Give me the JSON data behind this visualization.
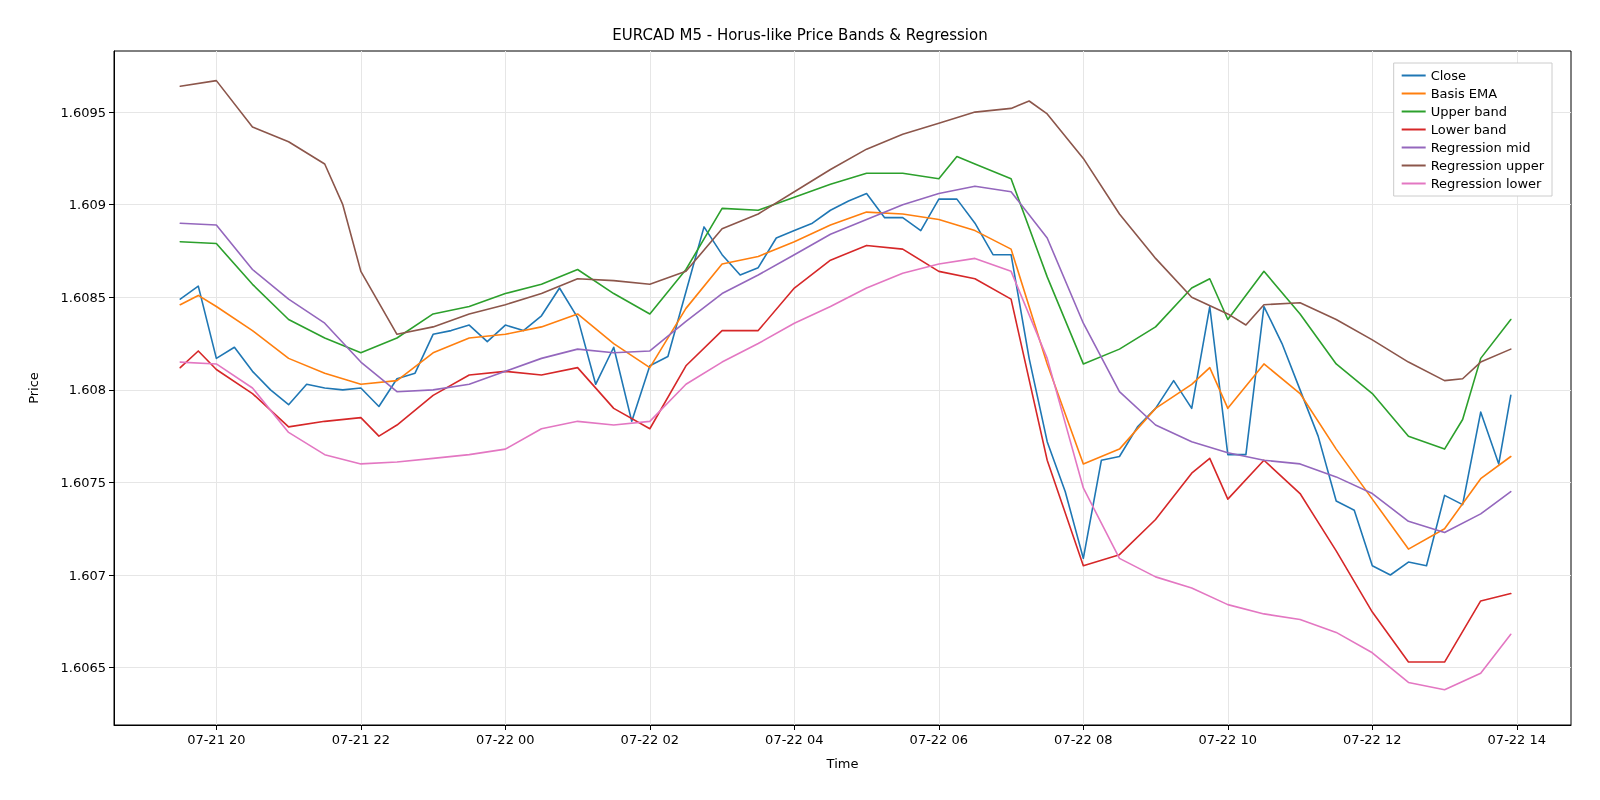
{
  "chart_data": {
    "type": "line",
    "title": "EURCAD M5 - Horus-like Price Bands & Regression",
    "xlabel": "Time",
    "ylabel": "Price",
    "legend": "top right",
    "grid": true,
    "marker": "none",
    "line_style": "solid",
    "xlim": [
      "--07-21T18:35",
      "--07-22T14:45"
    ],
    "xticks": [
      {
        "value": "--07-21T20:00",
        "label": "07-21 20"
      },
      {
        "value": "--07-21T22:00",
        "label": "07-21 22"
      },
      {
        "value": "--07-22T00:00",
        "label": "07-22 00"
      },
      {
        "value": "--07-22T02:00",
        "label": "07-22 02"
      },
      {
        "value": "--07-22T04:00",
        "label": "07-22 04"
      },
      {
        "value": "--07-22T06:00",
        "label": "07-22 06"
      },
      {
        "value": "--07-22T08:00",
        "label": "07-22 08"
      },
      {
        "value": "--07-22T10:00",
        "label": "07-22 10"
      },
      {
        "value": "--07-22T12:00",
        "label": "07-22 12"
      },
      {
        "value": "--07-22T14:00",
        "label": "07-22 14"
      }
    ],
    "ylim": [
      1.60619,
      1.60983
    ],
    "yticks": [
      1.6065,
      1.607,
      1.6075,
      1.608,
      1.6085,
      1.609,
      1.6095
    ],
    "series": [
      {
        "name": "Close",
        "color": "#1f77b4",
        "x": [
          "--07-21T19:30",
          "--07-21T19:45",
          "--07-21T20:00",
          "--07-21T20:15",
          "--07-21T20:30",
          "--07-21T20:45",
          "--07-21T21:00",
          "--07-21T21:15",
          "--07-21T21:30",
          "--07-21T21:45",
          "--07-21T22:00",
          "--07-21T22:15",
          "--07-21T22:30",
          "--07-21T22:45",
          "--07-21T23:00",
          "--07-21T23:15",
          "--07-21T23:30",
          "--07-21T23:45",
          "--07-22T00:00",
          "--07-22T00:15",
          "--07-22T00:30",
          "--07-22T00:45",
          "--07-22T01:00",
          "--07-22T01:15",
          "--07-22T01:30",
          "--07-22T01:45",
          "--07-22T02:00",
          "--07-22T02:15",
          "--07-22T02:30",
          "--07-22T02:45",
          "--07-22T03:00",
          "--07-22T03:15",
          "--07-22T03:30",
          "--07-22T03:45",
          "--07-22T04:00",
          "--07-22T04:15",
          "--07-22T04:30",
          "--07-22T04:45",
          "--07-22T05:00",
          "--07-22T05:15",
          "--07-22T05:30",
          "--07-22T05:45",
          "--07-22T06:00",
          "--07-22T06:15",
          "--07-22T06:30",
          "--07-22T06:45",
          "--07-22T07:00",
          "--07-22T07:15",
          "--07-22T07:30",
          "--07-22T07:45",
          "--07-22T08:00",
          "--07-22T08:15",
          "--07-22T08:30",
          "--07-22T08:45",
          "--07-22T09:00",
          "--07-22T09:15",
          "--07-22T09:30",
          "--07-22T09:45",
          "--07-22T10:00",
          "--07-22T10:15",
          "--07-22T10:30",
          "--07-22T10:45",
          "--07-22T11:00",
          "--07-22T11:15",
          "--07-22T11:30",
          "--07-22T11:45",
          "--07-22T12:00",
          "--07-22T12:15",
          "--07-22T12:30",
          "--07-22T12:45",
          "--07-22T13:00",
          "--07-22T13:15",
          "--07-22T13:30",
          "--07-22T13:45",
          "--07-22T13:55"
        ],
        "values": [
          1.60849,
          1.60856,
          1.60817,
          1.60823,
          1.6081,
          1.608,
          1.60792,
          1.60803,
          1.60801,
          1.608,
          1.60801,
          1.60791,
          1.60806,
          1.60809,
          1.6083,
          1.60832,
          1.60835,
          1.60826,
          1.60835,
          1.60832,
          1.6084,
          1.60855,
          1.60839,
          1.60803,
          1.60823,
          1.60783,
          1.60813,
          1.60818,
          1.60853,
          1.60888,
          1.60873,
          1.60862,
          1.60866,
          1.60882,
          1.60886,
          1.6089,
          1.60897,
          1.60902,
          1.60906,
          1.60893,
          1.60893,
          1.60886,
          1.60903,
          1.60903,
          1.6089,
          1.60873,
          1.60873,
          1.60817,
          1.60772,
          1.60745,
          1.60709,
          1.60762,
          1.60764,
          1.6078,
          1.6079,
          1.60805,
          1.6079,
          1.60845,
          1.60765,
          1.60765,
          1.60845,
          1.60825,
          1.608,
          1.60775,
          1.6074,
          1.60735,
          1.60705,
          1.607,
          1.60707,
          1.60705,
          1.60743,
          1.60738,
          1.60788,
          1.6076,
          1.60797
        ]
      },
      {
        "name": "Basis EMA",
        "color": "#ff7f0e",
        "x": [
          "--07-21T19:30",
          "--07-21T19:45",
          "--07-21T20:00",
          "--07-21T20:30",
          "--07-21T21:00",
          "--07-21T21:30",
          "--07-21T22:00",
          "--07-21T22:30",
          "--07-21T23:00",
          "--07-21T23:30",
          "--07-22T00:00",
          "--07-22T00:30",
          "--07-22T01:00",
          "--07-22T01:30",
          "--07-22T02:00",
          "--07-22T02:30",
          "--07-22T03:00",
          "--07-22T03:30",
          "--07-22T04:00",
          "--07-22T04:30",
          "--07-22T05:00",
          "--07-22T05:30",
          "--07-22T06:00",
          "--07-22T06:30",
          "--07-22T07:00",
          "--07-22T07:30",
          "--07-22T08:00",
          "--07-22T08:30",
          "--07-22T09:00",
          "--07-22T09:30",
          "--07-22T09:45",
          "--07-22T10:00",
          "--07-22T10:30",
          "--07-22T11:00",
          "--07-22T11:30",
          "--07-22T12:00",
          "--07-22T12:30",
          "--07-22T13:00",
          "--07-22T13:30",
          "--07-22T13:55"
        ],
        "values": [
          1.60846,
          1.60851,
          1.60845,
          1.60832,
          1.60817,
          1.60809,
          1.60803,
          1.60805,
          1.6082,
          1.60828,
          1.6083,
          1.60834,
          1.60841,
          1.60825,
          1.60812,
          1.60844,
          1.60868,
          1.60872,
          1.6088,
          1.60889,
          1.60896,
          1.60895,
          1.60892,
          1.60886,
          1.60876,
          1.60814,
          1.6076,
          1.60768,
          1.6079,
          1.60803,
          1.60812,
          1.6079,
          1.60814,
          1.60798,
          1.60768,
          1.60741,
          1.60714,
          1.60725,
          1.60752,
          1.60764
        ]
      },
      {
        "name": "Upper band",
        "color": "#2ca02c",
        "x": [
          "--07-21T19:30",
          "--07-21T20:00",
          "--07-21T20:30",
          "--07-21T21:00",
          "--07-21T21:30",
          "--07-21T22:00",
          "--07-21T22:30",
          "--07-21T23:00",
          "--07-21T23:30",
          "--07-22T00:00",
          "--07-22T00:30",
          "--07-22T01:00",
          "--07-22T01:30",
          "--07-22T02:00",
          "--07-22T02:30",
          "--07-22T03:00",
          "--07-22T03:30",
          "--07-22T04:00",
          "--07-22T04:30",
          "--07-22T05:00",
          "--07-22T05:30",
          "--07-22T06:00",
          "--07-22T06:15",
          "--07-22T06:30",
          "--07-22T07:00",
          "--07-22T07:30",
          "--07-22T08:00",
          "--07-22T08:30",
          "--07-22T09:00",
          "--07-22T09:30",
          "--07-22T09:45",
          "--07-22T10:00",
          "--07-22T10:30",
          "--07-22T11:00",
          "--07-22T11:30",
          "--07-22T12:00",
          "--07-22T12:30",
          "--07-22T13:00",
          "--07-22T13:15",
          "--07-22T13:30",
          "--07-22T13:55"
        ],
        "values": [
          1.6088,
          1.60879,
          1.60857,
          1.60838,
          1.60828,
          1.6082,
          1.60828,
          1.60841,
          1.60845,
          1.60852,
          1.60857,
          1.60865,
          1.60852,
          1.60841,
          1.60865,
          1.60898,
          1.60897,
          1.60904,
          1.60911,
          1.60917,
          1.60917,
          1.60914,
          1.60926,
          1.60922,
          1.60914,
          1.60861,
          1.60814,
          1.60822,
          1.60834,
          1.60855,
          1.6086,
          1.60838,
          1.60864,
          1.60841,
          1.60814,
          1.60798,
          1.60775,
          1.60768,
          1.60784,
          1.60817,
          1.60838
        ]
      },
      {
        "name": "Lower band",
        "color": "#d62728",
        "x": [
          "--07-21T19:30",
          "--07-21T19:45",
          "--07-21T20:00",
          "--07-21T20:30",
          "--07-21T21:00",
          "--07-21T21:30",
          "--07-21T22:00",
          "--07-21T22:15",
          "--07-21T22:30",
          "--07-21T23:00",
          "--07-21T23:30",
          "--07-22T00:00",
          "--07-22T00:30",
          "--07-22T01:00",
          "--07-22T01:30",
          "--07-22T02:00",
          "--07-22T02:30",
          "--07-22T03:00",
          "--07-22T03:30",
          "--07-22T04:00",
          "--07-22T04:30",
          "--07-22T05:00",
          "--07-22T05:30",
          "--07-22T06:00",
          "--07-22T06:30",
          "--07-22T07:00",
          "--07-22T07:30",
          "--07-22T08:00",
          "--07-22T08:30",
          "--07-22T09:00",
          "--07-22T09:30",
          "--07-22T09:45",
          "--07-22T10:00",
          "--07-22T10:30",
          "--07-22T11:00",
          "--07-22T11:30",
          "--07-22T12:00",
          "--07-22T12:30",
          "--07-22T13:00",
          "--07-22T13:30",
          "--07-22T13:55"
        ],
        "values": [
          1.60812,
          1.60821,
          1.60811,
          1.60798,
          1.6078,
          1.60783,
          1.60785,
          1.60775,
          1.60781,
          1.60797,
          1.60808,
          1.6081,
          1.60808,
          1.60812,
          1.6079,
          1.60779,
          1.60813,
          1.60832,
          1.60832,
          1.60855,
          1.6087,
          1.60878,
          1.60876,
          1.60864,
          1.6086,
          1.60849,
          1.60762,
          1.60705,
          1.60711,
          1.6073,
          1.60755,
          1.60763,
          1.60741,
          1.60762,
          1.60744,
          1.60713,
          1.6068,
          1.60653,
          1.60653,
          1.60686,
          1.6069
        ]
      },
      {
        "name": "Regression mid",
        "color": "#9467bd",
        "x": [
          "--07-21T19:30",
          "--07-21T20:00",
          "--07-21T20:30",
          "--07-21T21:00",
          "--07-21T21:30",
          "--07-21T22:00",
          "--07-21T22:30",
          "--07-21T23:00",
          "--07-21T23:30",
          "--07-22T00:00",
          "--07-22T00:30",
          "--07-22T01:00",
          "--07-22T01:30",
          "--07-22T02:00",
          "--07-22T02:30",
          "--07-22T03:00",
          "--07-22T03:30",
          "--07-22T04:00",
          "--07-22T04:30",
          "--07-22T05:00",
          "--07-22T05:30",
          "--07-22T06:00",
          "--07-22T06:30",
          "--07-22T07:00",
          "--07-22T07:30",
          "--07-22T08:00",
          "--07-22T08:30",
          "--07-22T09:00",
          "--07-22T09:30",
          "--07-22T10:00",
          "--07-22T10:30",
          "--07-22T11:00",
          "--07-22T11:30",
          "--07-22T12:00",
          "--07-22T12:30",
          "--07-22T13:00",
          "--07-22T13:30",
          "--07-22T13:55"
        ],
        "values": [
          1.6089,
          1.60889,
          1.60865,
          1.60849,
          1.60836,
          1.60815,
          1.60799,
          1.608,
          1.60803,
          1.6081,
          1.60817,
          1.60822,
          1.6082,
          1.60821,
          1.60837,
          1.60852,
          1.60862,
          1.60873,
          1.60884,
          1.60892,
          1.609,
          1.60906,
          1.6091,
          1.60907,
          1.60882,
          1.60836,
          1.60799,
          1.60781,
          1.60772,
          1.60766,
          1.60762,
          1.6076,
          1.60753,
          1.60744,
          1.60729,
          1.60723,
          1.60733,
          1.60745
        ]
      },
      {
        "name": "Regression upper",
        "color": "#8c564b",
        "x": [
          "--07-21T19:30",
          "--07-21T20:00",
          "--07-21T20:30",
          "--07-21T21:00",
          "--07-21T21:30",
          "--07-21T21:45",
          "--07-21T22:00",
          "--07-21T22:30",
          "--07-21T23:00",
          "--07-21T23:30",
          "--07-22T00:00",
          "--07-22T00:30",
          "--07-22T01:00",
          "--07-22T01:30",
          "--07-22T02:00",
          "--07-22T02:30",
          "--07-22T03:00",
          "--07-22T03:30",
          "--07-22T04:00",
          "--07-22T04:30",
          "--07-22T05:00",
          "--07-22T05:30",
          "--07-22T06:00",
          "--07-22T06:30",
          "--07-22T07:00",
          "--07-22T07:15",
          "--07-22T07:30",
          "--07-22T08:00",
          "--07-22T08:30",
          "--07-22T09:00",
          "--07-22T09:30",
          "--07-22T10:00",
          "--07-22T10:15",
          "--07-22T10:30",
          "--07-22T11:00",
          "--07-22T11:30",
          "--07-22T12:00",
          "--07-22T12:30",
          "--07-22T13:00",
          "--07-22T13:15",
          "--07-22T13:30",
          "--07-22T13:55"
        ],
        "values": [
          1.60964,
          1.60967,
          1.60942,
          1.60934,
          1.60922,
          1.609,
          1.60864,
          1.6083,
          1.60834,
          1.60841,
          1.60846,
          1.60852,
          1.6086,
          1.60859,
          1.60857,
          1.60864,
          1.60887,
          1.60895,
          1.60907,
          1.60919,
          1.6093,
          1.60938,
          1.60944,
          1.6095,
          1.60952,
          1.60956,
          1.60949,
          1.60925,
          1.60895,
          1.60871,
          1.6085,
          1.60841,
          1.60835,
          1.60846,
          1.60847,
          1.60838,
          1.60827,
          1.60815,
          1.60805,
          1.60806,
          1.60815,
          1.60822
        ]
      },
      {
        "name": "Regression lower",
        "color": "#e377c2",
        "x": [
          "--07-21T19:30",
          "--07-21T20:00",
          "--07-21T20:30",
          "--07-21T21:00",
          "--07-21T21:30",
          "--07-21T22:00",
          "--07-21T22:30",
          "--07-21T23:00",
          "--07-21T23:30",
          "--07-22T00:00",
          "--07-22T00:30",
          "--07-22T01:00",
          "--07-22T01:30",
          "--07-22T02:00",
          "--07-22T02:30",
          "--07-22T03:00",
          "--07-22T03:30",
          "--07-22T04:00",
          "--07-22T04:30",
          "--07-22T05:00",
          "--07-22T05:30",
          "--07-22T06:00",
          "--07-22T06:30",
          "--07-22T07:00",
          "--07-22T07:30",
          "--07-22T08:00",
          "--07-22T08:30",
          "--07-22T09:00",
          "--07-22T09:30",
          "--07-22T10:00",
          "--07-22T10:30",
          "--07-22T11:00",
          "--07-22T11:30",
          "--07-22T12:00",
          "--07-22T12:30",
          "--07-22T13:00",
          "--07-22T13:30",
          "--07-22T13:55"
        ],
        "values": [
          1.60815,
          1.60814,
          1.60801,
          1.60777,
          1.60765,
          1.6076,
          1.60761,
          1.60763,
          1.60765,
          1.60768,
          1.60779,
          1.60783,
          1.60781,
          1.60783,
          1.60803,
          1.60815,
          1.60825,
          1.60836,
          1.60845,
          1.60855,
          1.60863,
          1.60868,
          1.60871,
          1.60864,
          1.60817,
          1.60747,
          1.60709,
          1.60699,
          1.60693,
          1.60684,
          1.60679,
          1.60676,
          1.60669,
          1.60658,
          1.60642,
          1.60638,
          1.60647,
          1.60668
        ]
      }
    ]
  }
}
